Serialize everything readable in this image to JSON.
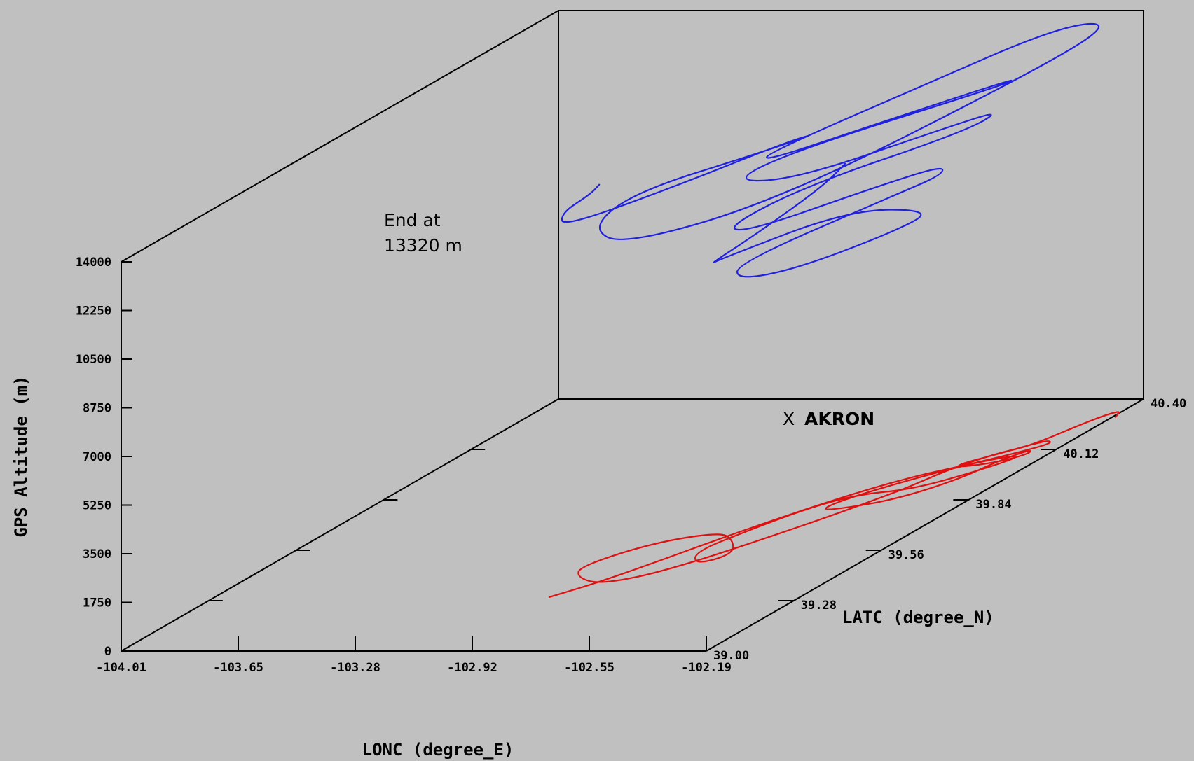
{
  "chart_data": {
    "type": "line",
    "title": "",
    "x_axis": {
      "label": "LONC (degree_E)",
      "range": [
        -104.01,
        -102.19
      ],
      "ticks": [
        "-104.01",
        "-103.65",
        "-103.28",
        "-102.92",
        "-102.55",
        "-102.19"
      ]
    },
    "y_axis": {
      "label": "LATC (degree_N)",
      "range": [
        39.0,
        40.4
      ],
      "ticks": [
        "39.00",
        "39.28",
        "39.56",
        "39.84",
        "40.12",
        "40.40"
      ]
    },
    "z_axis": {
      "label": "GPS Altitude (m)",
      "range": [
        0,
        14000
      ],
      "ticks": [
        "0",
        "1750",
        "3500",
        "5250",
        "7000",
        "8750",
        "10500",
        "12250",
        "14000"
      ]
    },
    "annotations": {
      "end_line1": "End at",
      "end_line2": "13320 m",
      "marker": "X",
      "station": "AKRON"
    },
    "series": [
      {
        "color": "#2020e0",
        "points": [
          [
            -102.39,
            39.65,
            13320
          ],
          [
            -102.43,
            39.62,
            12700
          ],
          [
            -102.5,
            39.48,
            11900
          ],
          [
            -102.57,
            39.4,
            11300
          ],
          [
            -102.61,
            39.48,
            11000
          ],
          [
            -102.49,
            39.77,
            10900
          ],
          [
            -102.32,
            39.86,
            10300
          ],
          [
            -102.35,
            39.78,
            10100
          ],
          [
            -102.47,
            39.58,
            10000
          ],
          [
            -102.55,
            39.47,
            10300
          ],
          [
            -102.58,
            39.5,
            10700
          ],
          [
            -102.42,
            39.82,
            11000
          ],
          [
            -102.33,
            39.9,
            11300
          ],
          [
            -102.29,
            39.86,
            11900
          ],
          [
            -102.37,
            39.72,
            12000
          ],
          [
            -102.52,
            39.48,
            12000
          ],
          [
            -102.57,
            39.45,
            12300
          ],
          [
            -102.5,
            39.64,
            12600
          ],
          [
            -102.33,
            39.97,
            12400
          ],
          [
            -102.27,
            40.03,
            12800
          ],
          [
            -102.33,
            39.92,
            12900
          ],
          [
            -102.49,
            39.6,
            13100
          ],
          [
            -102.62,
            39.52,
            13500
          ],
          [
            -102.55,
            39.64,
            13800
          ],
          [
            -102.3,
            40.02,
            13600
          ],
          [
            -102.24,
            40.05,
            13800
          ],
          [
            -102.25,
            39.98,
            14000
          ],
          [
            -102.4,
            39.7,
            14200
          ],
          [
            -102.55,
            39.56,
            14000
          ],
          [
            -102.6,
            39.62,
            13900
          ],
          [
            -102.44,
            39.95,
            14200
          ],
          [
            -102.27,
            40.22,
            14600
          ],
          [
            -102.18,
            40.3,
            14200
          ],
          [
            -102.26,
            40.1,
            13600
          ],
          [
            -102.49,
            39.55,
            12700
          ],
          [
            -102.76,
            39.32,
            12500
          ],
          [
            -102.9,
            39.36,
            12900
          ],
          [
            -102.88,
            39.48,
            13400
          ],
          [
            -102.7,
            39.7,
            13400
          ],
          [
            -102.6,
            39.78,
            13600
          ],
          [
            -102.65,
            39.72,
            13600
          ],
          [
            -102.79,
            39.5,
            13400
          ],
          [
            -102.93,
            39.3,
            13300
          ],
          [
            -102.98,
            39.35,
            13500
          ],
          [
            -102.96,
            39.42,
            13700
          ],
          [
            -102.97,
            39.46,
            13800
          ]
        ]
      },
      {
        "color": "#e01010",
        "points": [
          [
            -102.97,
            39.3,
            0
          ],
          [
            -102.88,
            39.4,
            0
          ],
          [
            -102.7,
            39.72,
            0
          ],
          [
            -102.52,
            39.95,
            0
          ],
          [
            -102.36,
            40.05,
            0
          ],
          [
            -102.26,
            40.13,
            0
          ],
          [
            -102.24,
            40.16,
            0
          ],
          [
            -102.27,
            40.17,
            0
          ],
          [
            -102.34,
            40.1,
            0
          ],
          [
            -102.41,
            40.04,
            0
          ],
          [
            -102.4,
            40.02,
            0
          ],
          [
            -102.3,
            40.05,
            0
          ],
          [
            -102.25,
            40.1,
            0
          ],
          [
            -102.27,
            40.12,
            0
          ],
          [
            -102.31,
            40.05,
            0
          ],
          [
            -102.33,
            39.96,
            0
          ],
          [
            -102.42,
            39.84,
            0
          ],
          [
            -102.57,
            39.78,
            0
          ],
          [
            -102.6,
            39.8,
            0
          ],
          [
            -102.55,
            39.88,
            0
          ],
          [
            -102.43,
            40.0,
            0
          ],
          [
            -102.33,
            40.07,
            0
          ],
          [
            -102.26,
            40.09,
            0
          ],
          [
            -102.31,
            40.01,
            0
          ],
          [
            -102.42,
            39.9,
            0
          ],
          [
            -102.56,
            39.87,
            0
          ],
          [
            -102.64,
            39.8,
            0
          ],
          [
            -102.71,
            39.67,
            0
          ],
          [
            -102.76,
            39.55,
            0
          ],
          [
            -102.69,
            39.48,
            0
          ],
          [
            -102.63,
            39.54,
            0
          ],
          [
            -102.71,
            39.62,
            0
          ],
          [
            -102.79,
            39.66,
            0
          ],
          [
            -102.94,
            39.6,
            0
          ],
          [
            -103.04,
            39.47,
            0
          ],
          [
            -102.99,
            39.41,
            0
          ],
          [
            -102.88,
            39.37,
            0
          ],
          [
            -102.74,
            39.45,
            0
          ],
          [
            -102.55,
            39.72,
            0
          ],
          [
            -102.46,
            39.88,
            0
          ],
          [
            -102.44,
            39.93,
            0
          ],
          [
            -102.41,
            40.02,
            0
          ],
          [
            -102.35,
            40.1,
            0
          ],
          [
            -102.29,
            40.14,
            0
          ],
          [
            -102.24,
            40.28,
            0
          ],
          [
            -102.2,
            40.34,
            0
          ],
          [
            -102.18,
            40.3,
            0
          ]
        ]
      }
    ]
  }
}
